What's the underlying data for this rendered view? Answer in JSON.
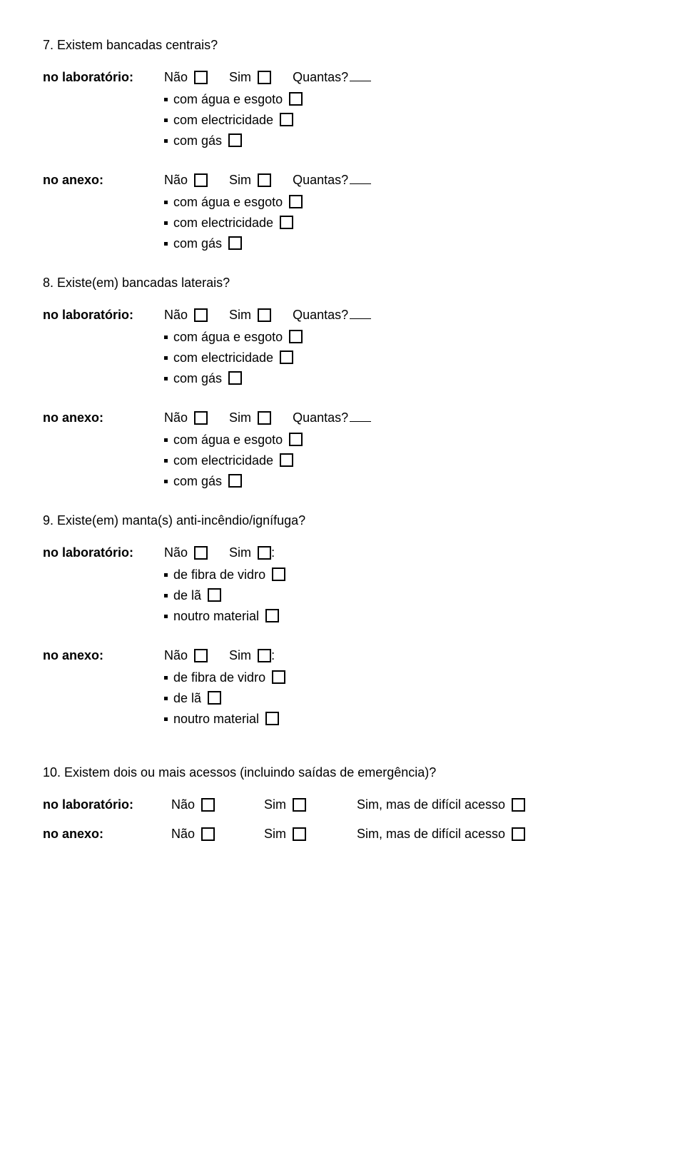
{
  "q7": {
    "title": "7. Existem bancadas centrais?",
    "lab_label": "no laboratório:",
    "anexo_label": "no anexo:",
    "nao": "Não",
    "sim": "Sim",
    "quantas": "Quantas?",
    "items": [
      "com água e esgoto",
      "com electricidade",
      "com gás"
    ]
  },
  "q8": {
    "title": "8. Existe(em) bancadas laterais?",
    "lab_label": "no laboratório:",
    "anexo_label": "no anexo:",
    "nao": "Não",
    "sim": "Sim",
    "quantas": "Quantas?",
    "items": [
      "com água e esgoto",
      "com electricidade",
      "com gás"
    ]
  },
  "q9": {
    "title": "9. Existe(em) manta(s) anti-incêndio/ignífuga?",
    "lab_label": "no laboratório:",
    "anexo_label": "no anexo:",
    "nao": "Não",
    "sim": "Sim",
    "colon": ":",
    "items": [
      "de fibra de vidro",
      "de lã",
      "noutro material"
    ]
  },
  "q10": {
    "title": "10. Existem dois ou mais acessos (incluindo saídas de emergência)?",
    "lab_label": "no laboratório:",
    "anexo_label": "no anexo:",
    "nao": "Não",
    "sim": "Sim",
    "dificil": "Sim, mas de difícil acesso"
  }
}
